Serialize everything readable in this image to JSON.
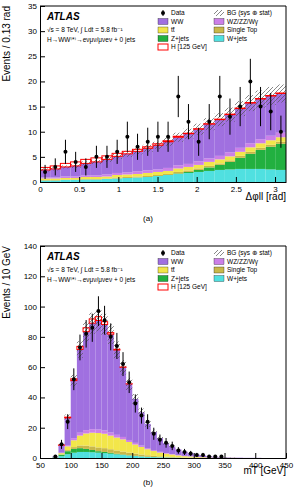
{
  "chart_data": [
    {
      "type": "histogram",
      "caption": "(a)",
      "annotations": [
        "ATLAS",
        "√s = 8 TeV, ∫ Ldt = 5.8 fb⁻¹",
        "H→WW⁽*⁾→eνμν/μνeν + 0 jets"
      ],
      "x_label": "Δφll [rad]",
      "y_label": "Events / 0.13 rad",
      "xlim": [
        0,
        3.14
      ],
      "ylim": [
        0,
        35
      ],
      "xticks": [
        0,
        0.5,
        1,
        1.5,
        2,
        2.5,
        3
      ],
      "yticks": [
        0,
        5,
        10,
        15,
        20,
        25,
        30,
        35
      ],
      "grid": false,
      "stacked": true,
      "legend": "top-right",
      "bins": [
        0,
        0.13,
        0.26,
        0.39,
        0.52,
        0.65,
        0.79,
        0.92,
        1.05,
        1.18,
        1.31,
        1.44,
        1.57,
        1.7,
        1.83,
        1.96,
        2.09,
        2.23,
        2.36,
        2.49,
        2.62,
        2.75,
        2.88,
        3.01,
        3.14
      ],
      "series": [
        {
          "name": "Data",
          "type": "scatter",
          "marker": "circle",
          "color": "#000000",
          "values": [
            2,
            3,
            6,
            4,
            3,
            5,
            5,
            6,
            9,
            7,
            8,
            9,
            9,
            17,
            12,
            8,
            12,
            17,
            13,
            15,
            20,
            15,
            14,
            10
          ],
          "errors": [
            1.4,
            1.7,
            2.4,
            2,
            1.7,
            2.2,
            2.2,
            2.4,
            3,
            2.6,
            2.8,
            3,
            3,
            4.1,
            3.5,
            2.8,
            3.5,
            4.1,
            3.6,
            3.9,
            4.5,
            3.9,
            3.7,
            3.2
          ]
        },
        {
          "name": "BG (sys ⊕ stat)",
          "type": "band",
          "color": "#555555",
          "errors": [
            0.3,
            0.3,
            0.3,
            0.4,
            0.4,
            0.4,
            0.5,
            0.5,
            0.6,
            0.6,
            0.7,
            0.7,
            0.8,
            0.9,
            1,
            1.1,
            1.2,
            1.3,
            1.4,
            1.5,
            1.6,
            1.7,
            1.8,
            1.8
          ]
        },
        {
          "name": "WW",
          "type": "bar",
          "color": "#a070e0",
          "values": [
            1.5,
            1.7,
            1.9,
            2.1,
            2.4,
            2.7,
            3,
            3.3,
            3.7,
            4,
            4.4,
            4.8,
            5.2,
            5.6,
            6,
            6.4,
            6.8,
            7.2,
            7.5,
            7.8,
            8,
            8,
            7.9,
            7.8
          ]
        },
        {
          "name": "WZ/ZZ/Wγ",
          "type": "bar",
          "color": "#cc80e8",
          "values": [
            0.2,
            0.2,
            0.3,
            0.3,
            0.3,
            0.3,
            0.4,
            0.4,
            0.4,
            0.5,
            0.5,
            0.5,
            0.6,
            0.6,
            0.6,
            0.7,
            0.7,
            0.7,
            0.8,
            0.8,
            0.8,
            0.8,
            0.9,
            0.9
          ]
        },
        {
          "name": "tt̄",
          "type": "bar",
          "color": "#f2e64a",
          "values": [
            0.3,
            0.3,
            0.3,
            0.3,
            0.4,
            0.4,
            0.4,
            0.5,
            0.5,
            0.5,
            0.6,
            0.6,
            0.6,
            0.7,
            0.7,
            0.7,
            0.8,
            0.8,
            0.8,
            0.8,
            0.9,
            0.9,
            0.9,
            0.9
          ]
        },
        {
          "name": "Single Top",
          "type": "bar",
          "color": "#c8b84a",
          "values": [
            0.1,
            0.1,
            0.1,
            0.1,
            0.1,
            0.1,
            0.1,
            0.2,
            0.2,
            0.2,
            0.2,
            0.2,
            0.2,
            0.3,
            0.3,
            0.3,
            0.3,
            0.3,
            0.3,
            0.4,
            0.4,
            0.4,
            0.4,
            0.4
          ]
        },
        {
          "name": "Z+jets",
          "type": "bar",
          "color": "#22b040",
          "values": [
            0,
            0,
            0,
            0,
            0,
            0,
            0,
            0,
            0,
            0,
            0,
            0,
            0,
            0.1,
            0.2,
            0.4,
            0.7,
            1,
            1.5,
            2.2,
            3,
            3.8,
            4.5,
            5.2
          ]
        },
        {
          "name": "W+jets",
          "type": "bar",
          "color": "#50e0e0",
          "values": [
            0.3,
            0.3,
            0.4,
            0.4,
            0.5,
            0.5,
            0.6,
            0.7,
            0.8,
            0.9,
            1,
            1.2,
            1.4,
            1.6,
            1.8,
            2,
            2.2,
            2.4,
            2.5,
            2.6,
            2.6,
            2.6,
            2.5,
            2.4
          ]
        },
        {
          "name": "H [125 GeV]",
          "type": "outline",
          "color": "#ff0000",
          "values": [
            0.5,
            0.6,
            0.7,
            0.8,
            0.8,
            0.8,
            0.7,
            0.6,
            0.5,
            0.4,
            0.3,
            0.3,
            0.2,
            0.2,
            0.1,
            0.1,
            0.1,
            0.1,
            0.1,
            0.1,
            0.1,
            0.1,
            0.1,
            0.1
          ]
        }
      ]
    },
    {
      "type": "histogram",
      "caption": "(b)",
      "annotations": [
        "ATLAS",
        "√s = 8 TeV, ∫ Ldt = 5.8 fb⁻¹",
        "H→WW⁽*⁾→eνμν/μνeν + 0 jets"
      ],
      "x_label": "mT [GeV]",
      "y_label": "Events / 10 GeV",
      "xlim": [
        50,
        450
      ],
      "ylim": [
        0,
        140
      ],
      "xticks": [
        50,
        100,
        150,
        200,
        250,
        300,
        350,
        400,
        450
      ],
      "yticks": [
        0,
        20,
        40,
        60,
        80,
        100,
        120,
        140
      ],
      "grid": false,
      "stacked": true,
      "legend": "top-right",
      "bins": [
        50,
        60,
        70,
        80,
        90,
        100,
        110,
        120,
        130,
        140,
        150,
        160,
        170,
        180,
        190,
        200,
        210,
        220,
        230,
        240,
        250,
        260,
        270,
        280,
        290,
        300,
        310,
        320,
        330,
        340,
        350,
        360,
        370,
        380,
        390,
        400,
        410,
        420,
        430,
        440,
        450
      ],
      "series": [
        {
          "name": "Data",
          "type": "scatter",
          "marker": "circle",
          "color": "#000000",
          "values": [
            null,
            null,
            1,
            9,
            24,
            52,
            73,
            82,
            86,
            97,
            91,
            80,
            74,
            62,
            50,
            36,
            28,
            24,
            16,
            12,
            10,
            8,
            5,
            4,
            3,
            2,
            2,
            1,
            1,
            1,
            null,
            null,
            null,
            null,
            null,
            null,
            null,
            null,
            null,
            null
          ],
          "errors": [
            null,
            null,
            1,
            3,
            4.9,
            7.2,
            8.5,
            9.1,
            9.3,
            9.8,
            9.5,
            8.9,
            8.6,
            7.9,
            7.1,
            6,
            5.3,
            4.9,
            4,
            3.5,
            3.2,
            2.8,
            2.2,
            2,
            1.7,
            1.4,
            1.4,
            1,
            1,
            1,
            null,
            null,
            null,
            null,
            null,
            null,
            null,
            null,
            null,
            null
          ]
        },
        {
          "name": "BG (sys ⊕ stat)",
          "type": "band",
          "color": "#555555",
          "errors": [
            0,
            0,
            0.1,
            0.8,
            2.2,
            4,
            5.5,
            6.5,
            7,
            7.2,
            7,
            6.5,
            5.7,
            4.8,
            4,
            3.2,
            2.5,
            1.9,
            1.5,
            1.2,
            0.9,
            0.7,
            0.5,
            0.4,
            0.3,
            0.2,
            0.2,
            0.1,
            0.1,
            0.1,
            0.1,
            0.1,
            0,
            0,
            0,
            0,
            0,
            0,
            0,
            0
          ]
        },
        {
          "name": "WW",
          "type": "bar",
          "color": "#a070e0",
          "values": [
            0,
            0,
            0.5,
            5,
            18,
            38,
            55,
            65,
            70,
            72,
            70,
            65,
            56,
            46,
            37,
            29,
            22,
            16,
            12,
            9,
            6.5,
            5,
            3.8,
            2.8,
            2,
            1.5,
            1.1,
            0.8,
            0.6,
            0.4,
            0.3,
            0.2,
            0.2,
            0.1,
            0.1,
            0.1,
            0,
            0,
            0,
            0
          ]
        },
        {
          "name": "WZ/ZZ/Wγ",
          "type": "bar",
          "color": "#cc80e8",
          "values": [
            0,
            0,
            0,
            0.3,
            0.8,
            1.4,
            1.9,
            2.2,
            2.3,
            2.3,
            2.2,
            2,
            1.8,
            1.6,
            1.3,
            1.1,
            0.9,
            0.7,
            0.6,
            0.5,
            0.4,
            0.3,
            0.2,
            0.2,
            0.1,
            0.1,
            0.1,
            0,
            0,
            0,
            0,
            0,
            0,
            0,
            0,
            0,
            0,
            0,
            0,
            0
          ]
        },
        {
          "name": "tt̄",
          "type": "bar",
          "color": "#f2e64a",
          "values": [
            0,
            0,
            0.1,
            0.8,
            2.5,
            4.5,
            6.5,
            8,
            9,
            9.5,
            9.5,
            9,
            8.5,
            8,
            7,
            6,
            5,
            4,
            3.2,
            2.5,
            2,
            1.6,
            1.2,
            0.9,
            0.7,
            0.5,
            0.4,
            0.3,
            0.2,
            0.2,
            0.1,
            0.1,
            0,
            0,
            0,
            0,
            0,
            0,
            0,
            0
          ]
        },
        {
          "name": "Single Top",
          "type": "bar",
          "color": "#c8b84a",
          "values": [
            0,
            0,
            0,
            0.2,
            0.7,
            1.2,
            1.8,
            2.2,
            2.4,
            2.5,
            2.5,
            2.4,
            2.2,
            2,
            1.8,
            1.5,
            1.2,
            1,
            0.8,
            0.6,
            0.5,
            0.4,
            0.3,
            0.2,
            0.2,
            0.1,
            0.1,
            0.1,
            0,
            0,
            0,
            0,
            0,
            0,
            0,
            0,
            0,
            0,
            0,
            0
          ]
        },
        {
          "name": "Z+jets",
          "type": "bar",
          "color": "#22b040",
          "values": [
            0,
            0,
            0.2,
            1,
            2,
            2.5,
            2.5,
            2,
            1.5,
            1,
            0.8,
            0.6,
            0.4,
            0.3,
            0.2,
            0.1,
            0.1,
            0,
            0,
            0,
            0,
            0,
            0,
            0,
            0,
            0,
            0,
            0,
            0,
            0,
            0,
            0,
            0,
            0,
            0,
            0,
            0,
            0,
            0,
            0
          ]
        },
        {
          "name": "W+jets",
          "type": "bar",
          "color": "#50e0e0",
          "values": [
            0,
            0,
            0.2,
            1.2,
            2.5,
            3.5,
            4,
            4,
            3.8,
            3.5,
            3.2,
            2.8,
            2.4,
            2,
            1.6,
            1.3,
            1,
            0.8,
            0.6,
            0.5,
            0.4,
            0.3,
            0.2,
            0.1,
            0.1,
            0,
            0,
            0,
            0,
            0,
            0,
            0,
            0,
            0,
            0,
            0,
            0,
            0,
            0,
            0
          ]
        },
        {
          "name": "H [125 GeV]",
          "type": "outline",
          "color": "#ff0000",
          "values": [
            0,
            0,
            0,
            0.1,
            0.5,
            1.2,
            2,
            2.6,
            2.8,
            2.5,
            1.8,
            1,
            0.5,
            0.2,
            0.1,
            0,
            0,
            0,
            0,
            0,
            0,
            0,
            0,
            0,
            0,
            0,
            0,
            0,
            0,
            0,
            0,
            0,
            0,
            0,
            0,
            0,
            0,
            0,
            0,
            0
          ]
        }
      ]
    }
  ]
}
